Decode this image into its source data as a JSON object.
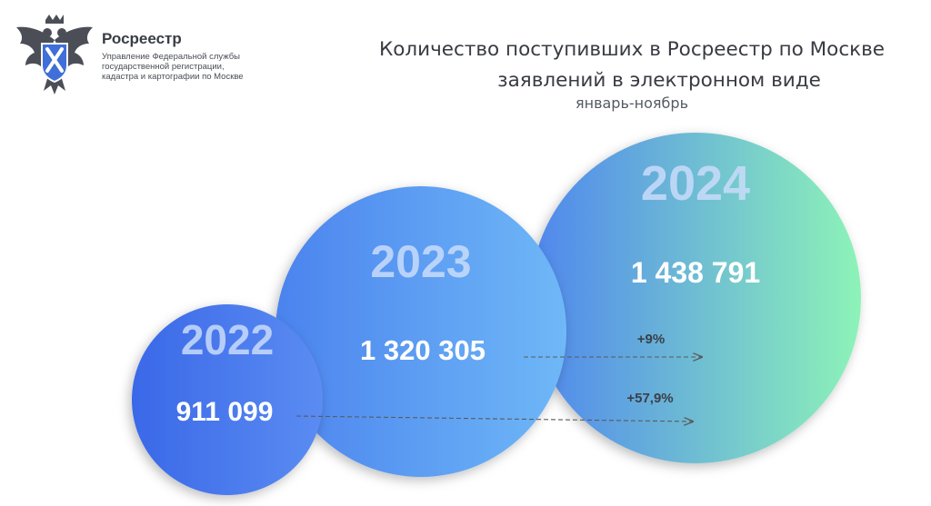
{
  "org": {
    "name": "Росреестр",
    "desc": [
      "Управление Федеральной службы",
      "государственной регистрации,",
      "кадастра и картографии по Москве"
    ]
  },
  "title_lines": [
    "Количество поступивших в Росреестр по Москве",
    "заявлений в электронном виде"
  ],
  "subtitle": "январь-ноябрь",
  "chart_data": {
    "type": "bubble",
    "title": "Количество поступивших в Росреестр по Москве заявлений в электронном виде",
    "subtitle": "январь-ноябрь",
    "categories": [
      "2022",
      "2023",
      "2024"
    ],
    "values": [
      911099,
      1320305,
      1438791
    ],
    "value_labels": [
      "911 099",
      "1 320 305",
      "1 438 791"
    ],
    "comparisons": [
      {
        "from": "2023",
        "to": "2024",
        "label": "+9%"
      },
      {
        "from": "2022",
        "to": "2024",
        "label": "+57,9%"
      }
    ]
  },
  "colors": {
    "bubble_2022": [
      "#3a68e8",
      "#5b8cf2"
    ],
    "bubble_2023": [
      "#4b83ee",
      "#6fb8f7"
    ],
    "bubble_2024": [
      "#4f86ee",
      "#8df3b8"
    ],
    "year_text": "#c9dcfa",
    "value_text": "#ffffff",
    "arrow": "#5a5a5a"
  }
}
